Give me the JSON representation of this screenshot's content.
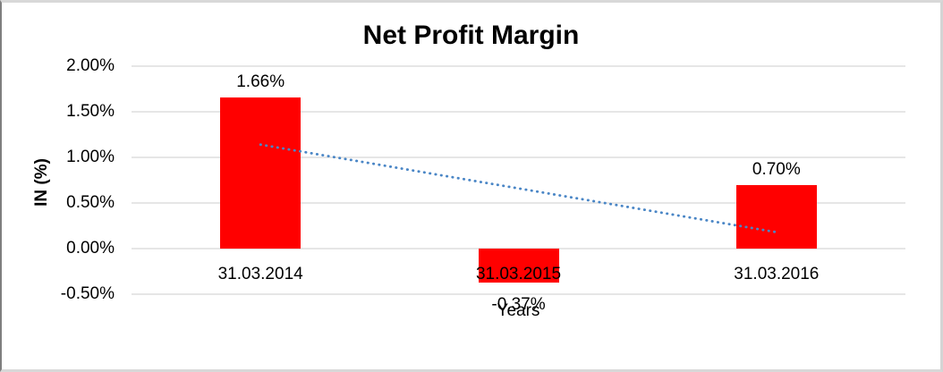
{
  "chart_data": {
    "type": "bar",
    "title": "Net Profit Margin",
    "xlabel": "Years",
    "ylabel": "IN (%)",
    "categories": [
      "31.03.2014",
      "31.03.2015",
      "31.03.2016"
    ],
    "values": [
      1.66,
      -0.37,
      0.7
    ],
    "data_labels": [
      "1.66%",
      "-0.37%",
      "0.70%"
    ],
    "yticks": [
      {
        "value": 2.0,
        "label": "2.00%"
      },
      {
        "value": 1.5,
        "label": "1.50%"
      },
      {
        "value": 1.0,
        "label": "1.00%"
      },
      {
        "value": 0.5,
        "label": "0.50%"
      },
      {
        "value": 0.0,
        "label": "0.00%"
      },
      {
        "value": -0.5,
        "label": "-0.50%"
      }
    ],
    "ylim": [
      -0.5,
      2.0
    ],
    "grid": true,
    "legend": false,
    "bar_color": "#ff0000",
    "gridline_color": "#d6d6d6",
    "text_color": "#000000",
    "background_color": "#ffffff",
    "trendline": {
      "type": "linear",
      "style": "dotted",
      "color": "#4a86c6",
      "start_value": 1.14,
      "end_value": 0.18
    }
  }
}
